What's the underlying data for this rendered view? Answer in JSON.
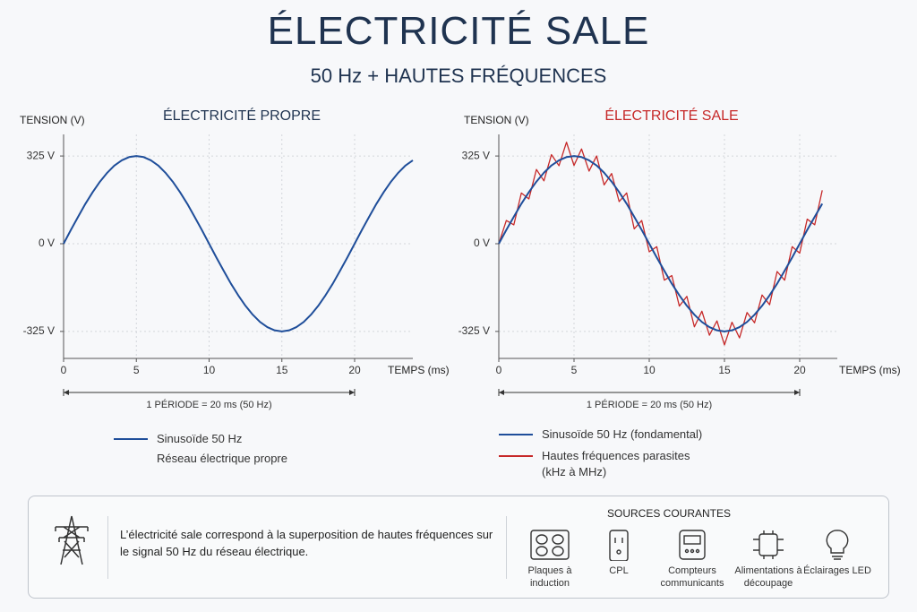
{
  "header": {
    "title": "ÉLECTRICITÉ SALE",
    "subtitle": "50 Hz + HAUTES FRÉQUENCES"
  },
  "chart_data": [
    {
      "type": "line",
      "title": "ÉLECTRICITÉ PROPRE",
      "title_color": "#1f3350",
      "ylabel": "TENSION (V)",
      "xlabel": "TEMPS (ms)",
      "annotation": "1 PÉRIODE = 20 ms (50 Hz)",
      "x": [
        0,
        0.5,
        1,
        1.5,
        2,
        2.5,
        3,
        3.5,
        4,
        4.5,
        5,
        5.5,
        6,
        6.5,
        7,
        7.5,
        8,
        8.5,
        9,
        9.5,
        10,
        10.5,
        11,
        11.5,
        12,
        12.5,
        13,
        13.5,
        14,
        14.5,
        15,
        15.5,
        16,
        16.5,
        17,
        17.5,
        18,
        18.5,
        19,
        19.5,
        20,
        20.5,
        21,
        21.5,
        22,
        22.5,
        23,
        23.5,
        24
      ],
      "series": [
        {
          "name": "Sinusoïde 50 Hz",
          "color": "#1f4e9a",
          "values": [
            0,
            51,
            100,
            148,
            191,
            230,
            263,
            290,
            309,
            321,
            325,
            321,
            309,
            290,
            263,
            230,
            191,
            148,
            100,
            51,
            0,
            -51,
            -100,
            -148,
            -191,
            -230,
            -263,
            -290,
            -309,
            -321,
            -325,
            -321,
            -309,
            -290,
            -263,
            -230,
            -191,
            -148,
            -100,
            -51,
            0,
            51,
            100,
            148,
            191,
            230,
            263,
            290,
            309
          ]
        }
      ],
      "legend_note": "Réseau électrique propre",
      "xlim": [
        0,
        24
      ],
      "ylim": [
        -425,
        405
      ],
      "xticks": [
        0,
        5,
        10,
        15,
        20
      ],
      "yticks": [
        {
          "value": 325,
          "label": "325 V"
        },
        {
          "value": 0,
          "label": "0 V"
        },
        {
          "value": -325,
          "label": "-325 V"
        }
      ],
      "grid": true
    },
    {
      "type": "line",
      "title": "ÉLECTRICITÉ SALE",
      "title_color": "#c62828",
      "ylabel": "TENSION (V)",
      "xlabel": "TEMPS (ms)",
      "annotation": "1 PÉRIODE = 20 ms (50 Hz)",
      "x": [
        0,
        0.5,
        1,
        1.5,
        2,
        2.5,
        3,
        3.5,
        4,
        4.5,
        5,
        5.5,
        6,
        6.5,
        7,
        7.5,
        8,
        8.5,
        9,
        9.5,
        10,
        10.5,
        11,
        11.5,
        12,
        12.5,
        13,
        13.5,
        14,
        14.5,
        15,
        15.5,
        16,
        16.5,
        17,
        17.5,
        18,
        18.5,
        19,
        19.5,
        20,
        20.5,
        21,
        21.5
      ],
      "series": [
        {
          "name": "Sinusoïde 50 Hz (fondamental)",
          "color": "#1f4e9a",
          "values": [
            0,
            51,
            100,
            148,
            191,
            230,
            263,
            290,
            309,
            321,
            325,
            321,
            309,
            290,
            263,
            230,
            191,
            148,
            100,
            51,
            0,
            -51,
            -100,
            -148,
            -191,
            -230,
            -263,
            -290,
            -309,
            -321,
            -325,
            -321,
            -309,
            -290,
            -263,
            -230,
            -191,
            -148,
            -100,
            -51,
            0,
            51,
            100,
            148
          ]
        },
        {
          "name": "Hautes fréquences parasites (kHz à MHz)",
          "color": "#c62828",
          "values": [
            0,
            86,
            70,
            188,
            166,
            275,
            233,
            330,
            289,
            376,
            290,
            351,
            269,
            325,
            218,
            260,
            156,
            188,
            55,
            86,
            -30,
            -11,
            -135,
            -118,
            -231,
            -195,
            -308,
            -250,
            -339,
            -286,
            -375,
            -291,
            -349,
            -255,
            -293,
            -190,
            -226,
            -103,
            -135,
            -11,
            -35,
            91,
            70,
            198
          ]
        }
      ],
      "xlim": [
        0,
        22.5
      ],
      "ylim": [
        -425,
        405
      ],
      "xticks": [
        0,
        5,
        10,
        15,
        20
      ],
      "yticks": [
        {
          "value": 325,
          "label": "325 V"
        },
        {
          "value": 0,
          "label": "0 V"
        },
        {
          "value": -325,
          "label": "-325 V"
        }
      ],
      "grid": true
    }
  ],
  "footer": {
    "text": "L’électricité sale correspond à la superposition de hautes fréquences sur le signal 50 Hz du réseau électrique.",
    "sources_title": "SOURCES COURANTES",
    "sources": [
      "Plaques à induction",
      "CPL",
      "Compteurs communicants",
      "Alimentations à découpage",
      "Éclairages LED"
    ]
  }
}
